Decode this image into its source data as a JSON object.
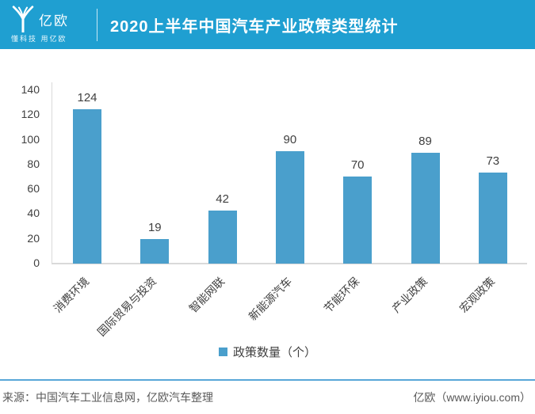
{
  "header": {
    "logo_text": "亿欧",
    "logo_tagline": "懂科技 用亿欧",
    "title": "2020上半年中国汽车产业政策类型统计"
  },
  "chart_data": {
    "type": "bar",
    "title": "2020上半年中国汽车产业政策类型统计",
    "categories": [
      "消费环境",
      "国际贸易与投资",
      "智能网联",
      "新能源汽车",
      "节能环保",
      "产业政策",
      "宏观政策"
    ],
    "values": [
      124,
      19,
      42,
      90,
      70,
      89,
      73
    ],
    "series_name": "政策数量（个）",
    "xlabel": "",
    "ylabel": "",
    "ylim": [
      0,
      140
    ],
    "ytick_step": 20,
    "grid": false,
    "legend_position": "bottom",
    "bar_color": "#4a9fcc"
  },
  "colors": {
    "header_bg": "#1f9fd1",
    "bar": "#4a9fcc",
    "axis_line": "#d9d9d9",
    "footer_line": "#58a7d8",
    "label_text": "#404040",
    "footer_text": "#595959"
  },
  "footer": {
    "source": "来源：中国汽车工业信息网，亿欧汽车整理",
    "brand": "亿欧（www.iyiou.com）"
  }
}
